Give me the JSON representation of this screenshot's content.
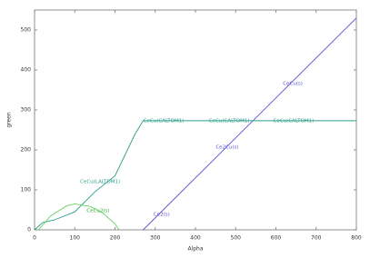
{
  "chart_data": {
    "type": "line",
    "x_label": "Alpha",
    "y_label": "green",
    "xlim": [
      0,
      800
    ],
    "ylim": [
      0,
      550
    ],
    "xticks": [
      0,
      100,
      200,
      300,
      400,
      500,
      600,
      700,
      800
    ],
    "yticks": [
      0,
      100,
      200,
      300,
      400,
      500
    ],
    "series": [
      {
        "color": "#5b52d6",
        "x": [
          270,
          800
        ],
        "values": [
          0,
          530
        ]
      },
      {
        "color": "#2e9e8c",
        "x": [
          0,
          20,
          50,
          100,
          150,
          200,
          250,
          270,
          800
        ],
        "values": [
          0,
          18,
          25,
          45,
          95,
          135,
          240,
          273,
          273
        ]
      },
      {
        "color": "#66d066",
        "x": [
          10,
          40,
          80,
          100,
          140,
          170,
          200,
          210
        ],
        "values": [
          0,
          35,
          60,
          65,
          58,
          42,
          15,
          0
        ]
      }
    ],
    "annotations": [
      {
        "text": "Ce2(s)",
        "x": 316,
        "y": 39,
        "color": "#5b52d6"
      },
      {
        "text": "Ce2Cu(s)",
        "x": 479,
        "y": 207,
        "color": "#5b52d6"
      },
      {
        "text": "CeCu(s)",
        "x": 642,
        "y": 366,
        "color": "#5b52d6"
      },
      {
        "text": "CeCu(LALTOM1)",
        "x": 163,
        "y": 120,
        "color": "#2e9e8c"
      },
      {
        "text": "CeCu(CALTOM1)",
        "x": 321,
        "y": 273,
        "color": "#2e9e8c"
      },
      {
        "text": "CeCu(CALTOM1)",
        "x": 484,
        "y": 273,
        "color": "#2e9e8c"
      },
      {
        "text": "CeCu(CALTOM1)",
        "x": 644,
        "y": 273,
        "color": "#2e9e8c"
      },
      {
        "text": "CeCu2(s)",
        "x": 158,
        "y": 48,
        "color": "#33aa33"
      }
    ]
  }
}
